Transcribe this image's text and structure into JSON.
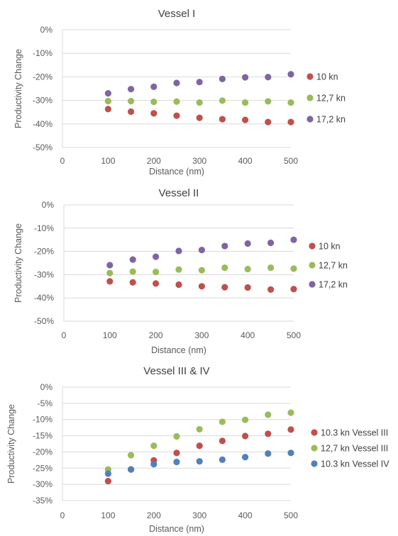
{
  "chart_data": [
    {
      "type": "scatter",
      "title": "Vessel I",
      "xlabel": "Distance (nm)",
      "ylabel": "Productivity Change",
      "xlim": [
        0,
        500
      ],
      "ylim": [
        -50,
        0
      ],
      "xticks": [
        0,
        100,
        200,
        300,
        400,
        500
      ],
      "yticks": [
        0,
        -10,
        -20,
        -30,
        -40,
        -50
      ],
      "ytick_labels": [
        "0%",
        "-10%",
        "-20%",
        "-30%",
        "-40%",
        "-50%"
      ],
      "grid": "horizontal",
      "legend_position": "right",
      "x": [
        100,
        150,
        200,
        250,
        300,
        350,
        400,
        450,
        500
      ],
      "series": [
        {
          "name": "10 kn",
          "color": "#c0504d",
          "values": [
            -33.7,
            -34.8,
            -35.5,
            -36.5,
            -37.4,
            -38.0,
            -38.3,
            -39.2,
            -39.2
          ]
        },
        {
          "name": "12,7 kn",
          "color": "#9bbb59",
          "values": [
            -30.3,
            -30.3,
            -30.6,
            -30.5,
            -30.9,
            -30.1,
            -30.9,
            -30.4,
            -30.9
          ]
        },
        {
          "name": "17,2 kn",
          "color": "#8064a2",
          "values": [
            -27.0,
            -25.2,
            -24.2,
            -22.6,
            -22.2,
            -20.9,
            -20.2,
            -20.1,
            -18.9
          ]
        }
      ]
    },
    {
      "type": "scatter",
      "title": "Vessel II",
      "xlabel": "Distance (nm)",
      "ylabel": "Productivity Change",
      "xlim": [
        0,
        500
      ],
      "ylim": [
        -50,
        0
      ],
      "xticks": [
        0,
        100,
        200,
        300,
        400,
        500
      ],
      "yticks": [
        0,
        -10,
        -20,
        -30,
        -40,
        -50
      ],
      "ytick_labels": [
        "0%",
        "-10%",
        "-20%",
        "-30%",
        "-40%",
        "-50%"
      ],
      "grid": "horizontal",
      "legend_position": "right",
      "x": [
        100,
        150,
        200,
        250,
        300,
        350,
        400,
        450,
        500
      ],
      "series": [
        {
          "name": "10 kn",
          "color": "#c0504d",
          "values": [
            -32.9,
            -33.3,
            -33.8,
            -34.3,
            -35.0,
            -35.4,
            -35.5,
            -36.4,
            -36.2
          ]
        },
        {
          "name": "12,7 kn",
          "color": "#9bbb59",
          "values": [
            -29.3,
            -28.7,
            -28.8,
            -27.8,
            -28.1,
            -27.0,
            -27.6,
            -27.0,
            -27.4
          ]
        },
        {
          "name": "17,2 kn",
          "color": "#8064a2",
          "values": [
            -25.9,
            -23.5,
            -22.3,
            -19.8,
            -19.4,
            -17.7,
            -16.6,
            -16.3,
            -15.0
          ]
        }
      ]
    },
    {
      "type": "scatter",
      "title": "Vessel III & IV",
      "xlabel": "Distance (nm)",
      "ylabel": "Productivity Change",
      "xlim": [
        0,
        500
      ],
      "ylim": [
        -35,
        0
      ],
      "xticks": [
        0,
        100,
        200,
        300,
        400,
        500
      ],
      "yticks": [
        0,
        -5,
        -10,
        -15,
        -20,
        -25,
        -30,
        -35
      ],
      "ytick_labels": [
        "0%",
        "-5%",
        "-10%",
        "-15%",
        "-20%",
        "-25%",
        "-30%",
        "-35%"
      ],
      "grid": "horizontal",
      "legend_position": "right",
      "x": [
        100,
        150,
        200,
        250,
        300,
        350,
        400,
        450,
        500
      ],
      "series": [
        {
          "name": "10.3 kn Vessel III",
          "color": "#c0504d",
          "values": [
            -29.0,
            -25.4,
            -22.6,
            -20.3,
            -18.1,
            -16.6,
            -15.1,
            -14.4,
            -13.1
          ]
        },
        {
          "name": "12,7 kn Vessel III",
          "color": "#9bbb59",
          "values": [
            -25.4,
            -21.0,
            -18.1,
            -15.2,
            -13.0,
            -10.7,
            -10.1,
            -8.5,
            -7.9
          ]
        },
        {
          "name": "10.3 kn Vessel IV",
          "color": "#4f81bd",
          "values": [
            -26.7,
            -25.4,
            -23.8,
            -23.1,
            -22.9,
            -22.4,
            -21.6,
            -20.5,
            -20.3
          ]
        }
      ]
    }
  ]
}
